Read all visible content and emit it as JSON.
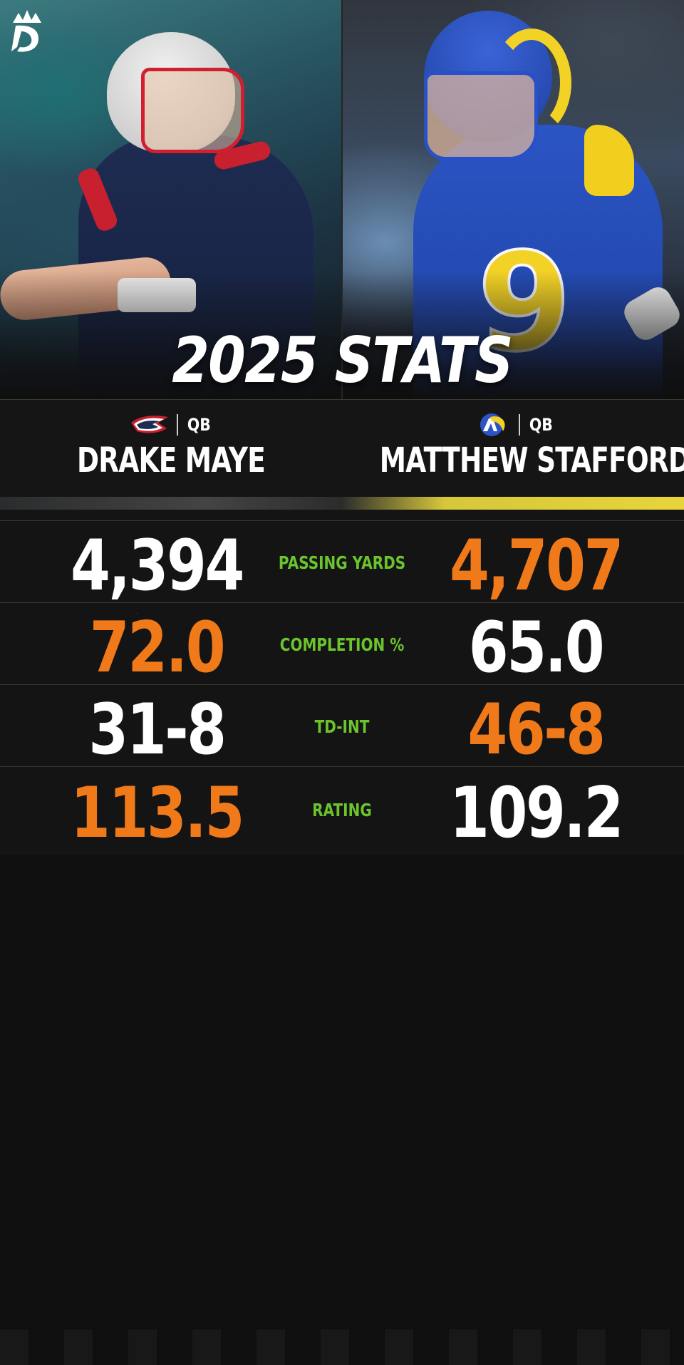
{
  "header": {
    "title": "2025 STATS"
  },
  "colors": {
    "highlight": "#f07a1a",
    "label_green": "#6bc42b",
    "patriots_navy": "#1e2c52",
    "rams_blue": "#2b55c4",
    "rams_gold": "#f3d226"
  },
  "players": [
    {
      "team_logo": "patriots-logo",
      "position": "QB",
      "name": "DRAKE MAYE"
    },
    {
      "team_logo": "rams-logo",
      "position": "QB",
      "name": "MATTHEW STAFFORD"
    }
  ],
  "jersey_number_right": "9",
  "stats": [
    {
      "label": "PASSING YARDS",
      "left": "4,394",
      "right": "4,707",
      "leader": "right"
    },
    {
      "label": "COMPLETION %",
      "left": "72.0",
      "right": "65.0",
      "leader": "left"
    },
    {
      "label": "TD-INT",
      "left": "31-8",
      "right": "46-8",
      "leader": "right"
    },
    {
      "label": "RATING",
      "left": "113.5",
      "right": "109.2",
      "leader": "left"
    }
  ]
}
